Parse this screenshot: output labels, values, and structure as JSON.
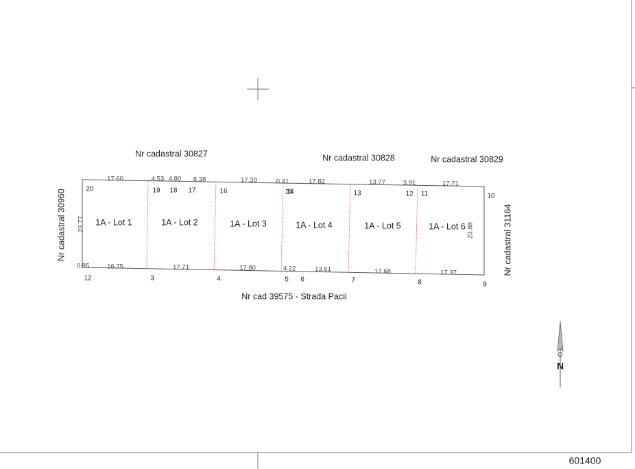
{
  "neighbors": {
    "north_1": "Nr cadastral 30827",
    "north_2": "Nr cadastral 30828",
    "north_3": "Nr cadastral 30829",
    "west": "Nr cadastral 30960",
    "east": "Nr cadastral 31164",
    "south": "Nr cad 39575 - Strada Pacii"
  },
  "lots": [
    "1A - Lot 1",
    "1A - Lot 2",
    "1A - Lot 3",
    "1A - Lot 4",
    "1A - Lot 5",
    "1A - Lot 6"
  ],
  "top_dimensions": [
    "17.60",
    "4.53",
    "4.80",
    "8.38",
    "17.39",
    "0.41",
    "17.82",
    "13.77",
    "3.91",
    "17.71"
  ],
  "bottom_dimensions": [
    "0.85",
    "16.75",
    "17.71",
    "17.80",
    "4.22",
    "13.61",
    "17.68",
    "17.37"
  ],
  "side_dimensions": [
    "23.77",
    "23.88"
  ],
  "top_points": [
    "20",
    "19",
    "18",
    "17",
    "16",
    "15",
    "14",
    "13",
    "12",
    "11",
    "10"
  ],
  "bottom_points": [
    "12",
    "3",
    "4",
    "5",
    "6",
    "7",
    "8",
    "9"
  ],
  "north_label": "N",
  "coordinate": "601400"
}
